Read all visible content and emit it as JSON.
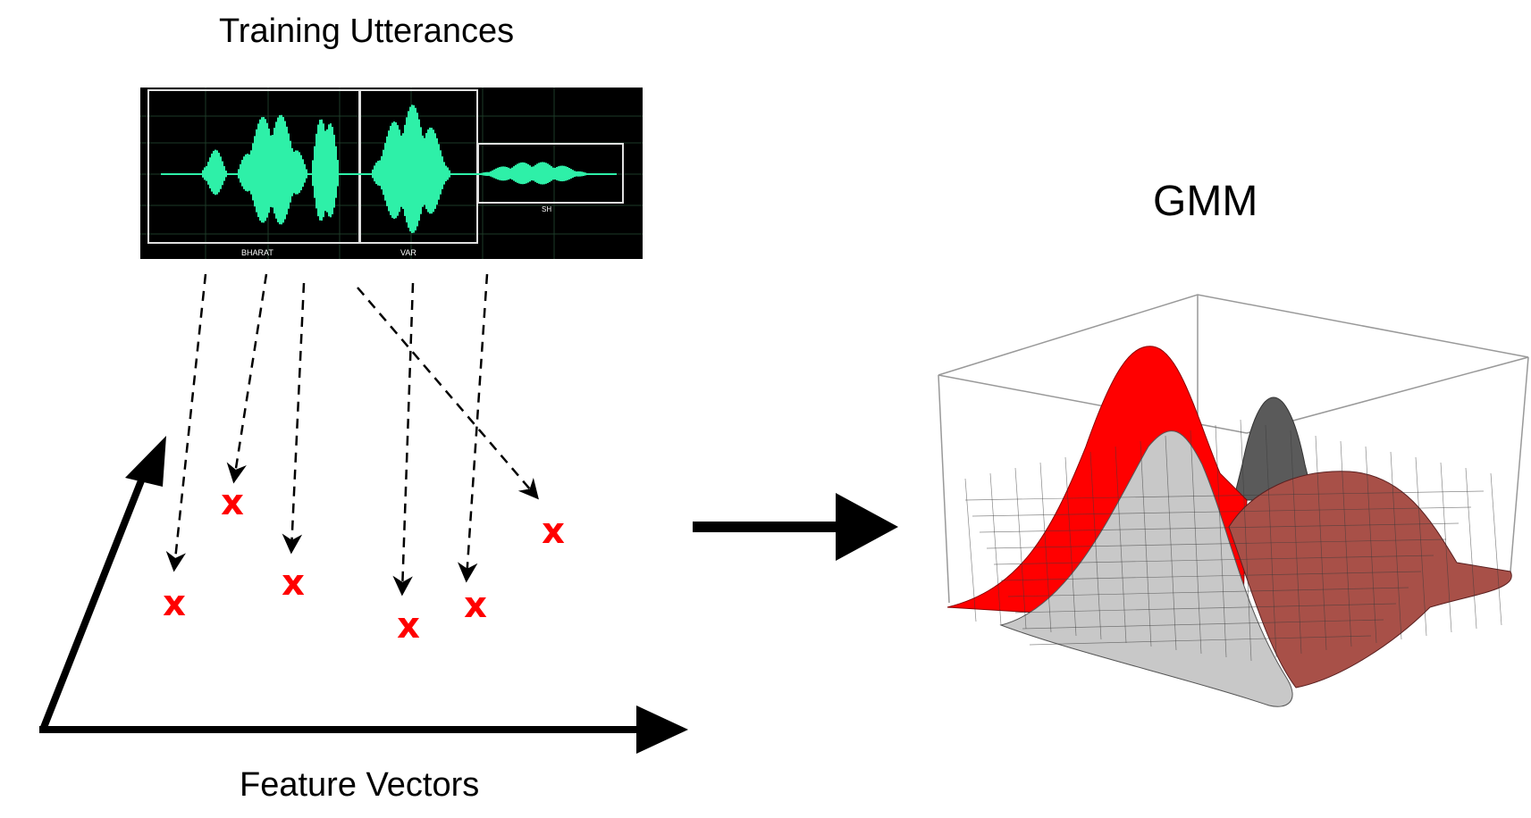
{
  "diagram": {
    "top_title": "Training Utterances",
    "bottom_title": "Feature Vectors",
    "model_title": "GMM",
    "waveform_labels": [
      "BHARAT",
      "VAR",
      "SH"
    ],
    "feature_marker": "x",
    "colors": {
      "marker": "#ff0000",
      "waveform": "#2ef0a8",
      "waveform_bg": "#000000",
      "gmm_red": "#ff0000",
      "gmm_gray": "#c8c8c8",
      "gmm_dark": "#5a5a5a",
      "gmm_brown": "#a85048"
    }
  }
}
